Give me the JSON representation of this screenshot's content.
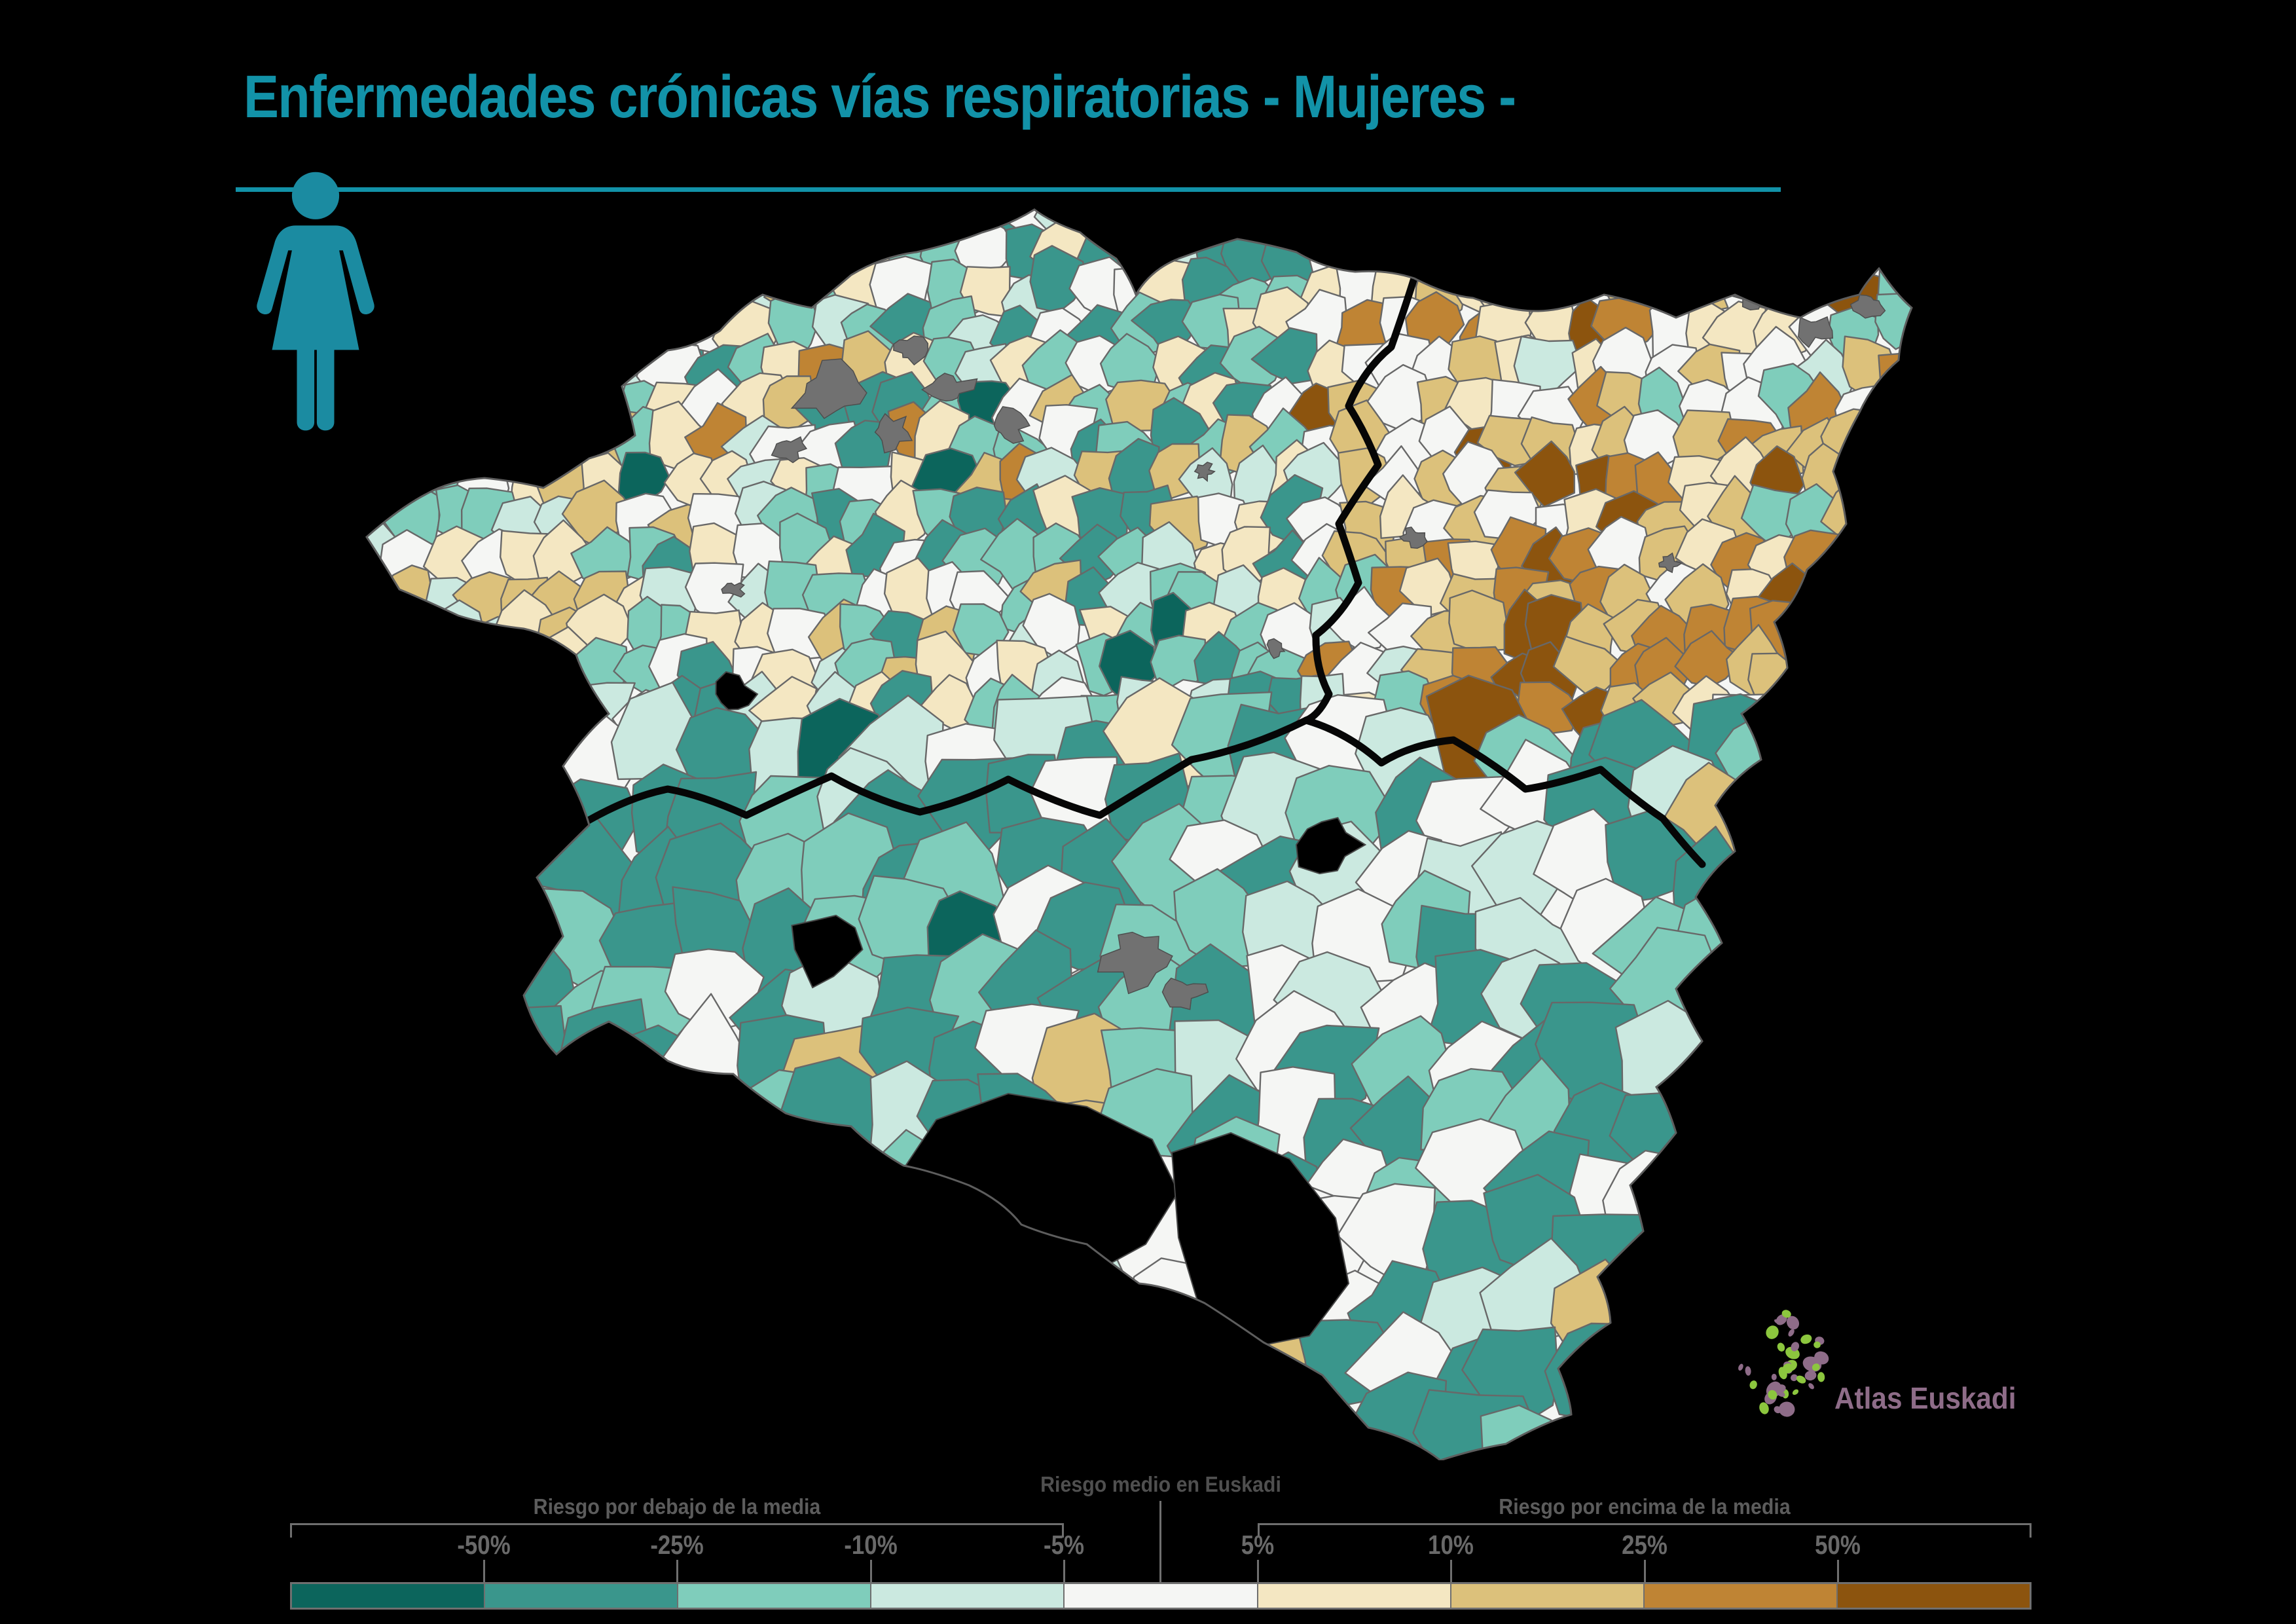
{
  "title": "Enfermedades crónicas vías respiratorias - Mujeres -",
  "colors": {
    "teal": "#1292a8",
    "icon_teal": "#1b8ba1",
    "label_gray": "#5c5c5c",
    "tick_gray": "#696969",
    "line_gray": "#6f6f6f",
    "map_cell_border": "#686868",
    "province_border": "#060606",
    "urban_gray": "#717171",
    "logo_green": "#8cc63e",
    "logo_purple": "#8e6c88",
    "background": "#000000"
  },
  "female_icon": {
    "name": "female-figure",
    "color": "#1b8ba1"
  },
  "logo": {
    "label": "Atlas Euskadi"
  },
  "legend": {
    "caption_below": "Riesgo por debajo de la media",
    "caption_middle": "Riesgo medio en Euskadi",
    "caption_above": "Riesgo por encima de la media",
    "tick_labels": [
      "-50%",
      "-25%",
      "-10%",
      "-5%",
      "5%",
      "10%",
      "25%",
      "50%"
    ],
    "segment_colors": [
      "#0c655c",
      "#3a968c",
      "#7fcdbb",
      "#cbe9e0",
      "#f5f6f4",
      "#f4e7c2",
      "#dcc17b",
      "#bf8434",
      "#8c540e"
    ]
  },
  "chart_data": {
    "type": "choropleth",
    "title": "Enfermedades crónicas vías respiratorias - Mujeres -",
    "measure_unit": "%",
    "legend_groups": [
      "Riesgo por debajo de la media",
      "Riesgo medio en Euskadi",
      "Riesgo por encima de la media"
    ],
    "bins": [
      {
        "range": "<= -50%",
        "color": "#0c655c",
        "group": "below"
      },
      {
        "range": "-50% a -25%",
        "color": "#3a968c",
        "group": "below"
      },
      {
        "range": "-25% a -10%",
        "color": "#7fcdbb",
        "group": "below"
      },
      {
        "range": "-10% a -5%",
        "color": "#cbe9e0",
        "group": "below"
      },
      {
        "range": "-5% a 5%",
        "color": "#f5f6f4",
        "group": "average"
      },
      {
        "range": "5% a 10%",
        "color": "#f4e7c2",
        "group": "above"
      },
      {
        "range": "10% a 25%",
        "color": "#dcc17b",
        "group": "above"
      },
      {
        "range": "25% a 50%",
        "color": "#bf8434",
        "group": "above"
      },
      {
        "range": ">= 50%",
        "color": "#8c540e",
        "group": "above"
      }
    ]
  },
  "map": {
    "zones": {
      "west_arm": {
        "1": 4,
        "2": 8,
        "3": 12,
        "4": 16,
        "5": 30,
        "6": 30
      },
      "bizkaia": {
        "0": 2,
        "1": 16,
        "2": 24,
        "3": 14,
        "4": 18,
        "5": 14,
        "6": 9,
        "7": 3
      },
      "gernika": {
        "1": 38,
        "2": 24,
        "3": 10,
        "4": 14,
        "5": 10,
        "6": 4
      },
      "gipuzkoa": {
        "2": 6,
        "3": 6,
        "4": 34,
        "5": 22,
        "6": 18,
        "7": 10,
        "8": 4
      },
      "gipuzkoa_se": {
        "2": 2,
        "4": 12,
        "5": 14,
        "6": 28,
        "7": 28,
        "8": 16
      },
      "ne_tip": {
        "2": 22,
        "3": 8,
        "4": 26,
        "5": 18,
        "6": 14,
        "7": 8,
        "8": 4
      },
      "araba": {
        "0": 5,
        "1": 45,
        "2": 20,
        "3": 12,
        "4": 15,
        "6": 3
      },
      "rioja": {
        "0": 4,
        "1": 34,
        "2": 16,
        "3": 12,
        "4": 30,
        "6": 4
      }
    }
  }
}
